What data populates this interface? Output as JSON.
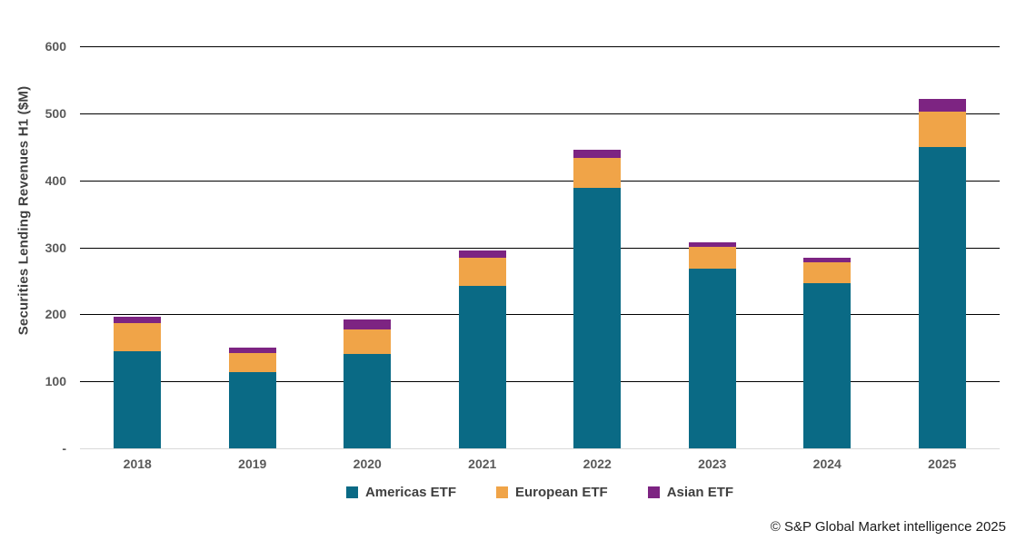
{
  "footer": {
    "copyright": "© S&P Global Market intelligence 2025"
  },
  "chart_data": {
    "type": "bar",
    "stacked": true,
    "title": "",
    "xlabel": "",
    "ylabel": "Securities Lending Revenues H1 ($M)",
    "ylim": [
      0,
      600
    ],
    "grid": "horizontal",
    "legend_position": "bottom",
    "gridline_color": "#000000",
    "baseline_color": "#d9d9d9",
    "yticks": [
      {
        "value": 600,
        "label": "600"
      },
      {
        "value": 500,
        "label": "500"
      },
      {
        "value": 400,
        "label": "400"
      },
      {
        "value": 300,
        "label": "300"
      },
      {
        "value": 200,
        "label": "200"
      },
      {
        "value": 100,
        "label": "100"
      },
      {
        "value": 0,
        "label": "-"
      }
    ],
    "categories": [
      "2018",
      "2019",
      "2020",
      "2021",
      "2022",
      "2023",
      "2024",
      "2025"
    ],
    "series": [
      {
        "name": "Americas ETF",
        "color": "#0a6a85",
        "values": [
          145,
          114,
          141,
          242,
          389,
          268,
          247,
          450
        ]
      },
      {
        "name": "European ETF",
        "color": "#f0a448",
        "values": [
          42,
          28,
          36,
          42,
          45,
          33,
          31,
          52
        ]
      },
      {
        "name": "Asian ETF",
        "color": "#7d2482",
        "values": [
          9,
          8,
          15,
          11,
          11,
          6,
          7,
          19
        ]
      }
    ]
  }
}
